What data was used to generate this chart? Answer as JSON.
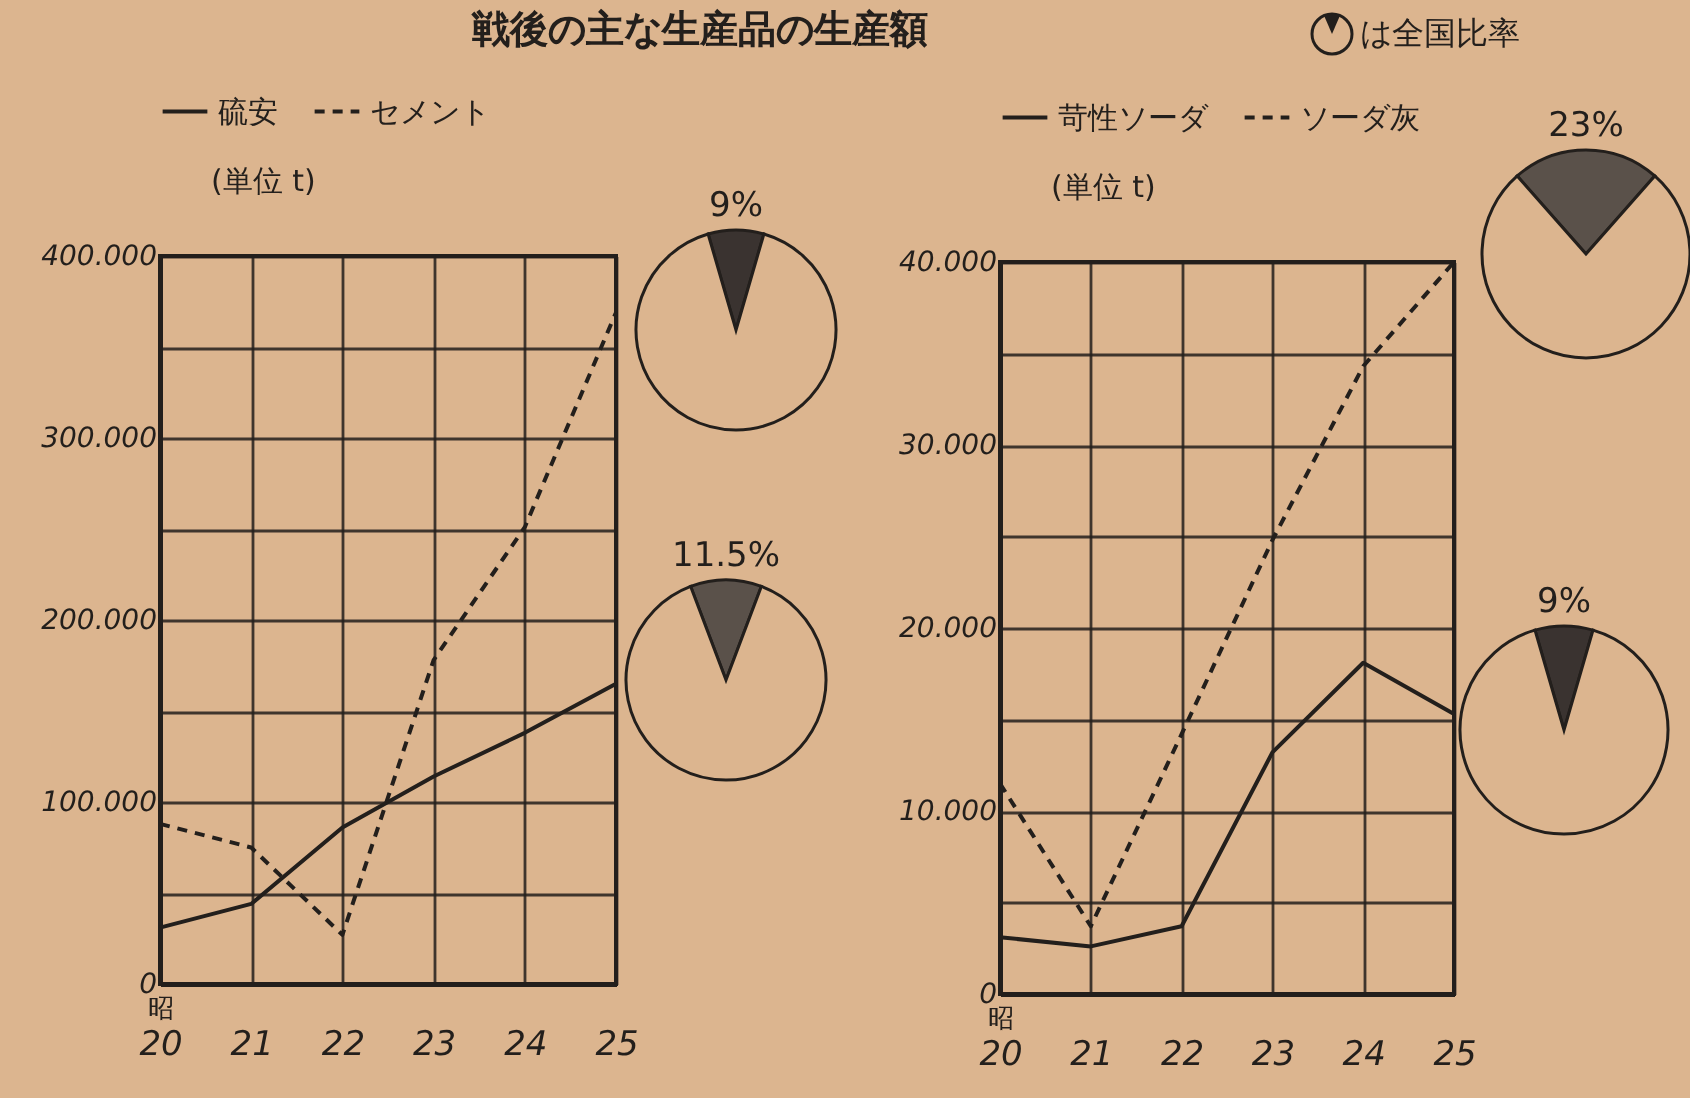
{
  "chart_data": [
    {
      "type": "line",
      "title": "戦後の主な生産品の生産額",
      "annotations": [
        "は全国比率"
      ],
      "ylabel": "(単位 t)",
      "xlabel": "昭",
      "categories": [
        "20",
        "21",
        "22",
        "23",
        "24",
        "25"
      ],
      "series": [
        {
          "name": "硫安",
          "color": "#231f1c",
          "line_style": "solid",
          "values": [
            31,
            44,
            86,
            114,
            138,
            165
          ]
        },
        {
          "name": "セメント",
          "color": "#231f1c",
          "line_style": "dashed",
          "values": [
            88,
            75,
            27,
            178,
            251,
            369
          ]
        }
      ],
      "ylim": [
        0,
        400
      ],
      "yticks": [
        0,
        {
          "value": 50,
          "label": null
        },
        {
          "value": 100,
          "label": "100.000"
        },
        {
          "value": 150,
          "label": null
        },
        {
          "value": 200,
          "label": "200.000"
        },
        {
          "value": 250,
          "label": null
        },
        {
          "value": 300,
          "label": "300.000"
        },
        {
          "value": 350,
          "label": null
        },
        {
          "value": 400,
          "label": "400.000"
        }
      ],
      "grid": true,
      "legend": "top left",
      "marker": "none"
    },
    {
      "type": "pie",
      "categories": [
        null,
        null
      ],
      "values": [
        9,
        91
      ],
      "colors": [
        "#3a3330",
        "#dcb58f"
      ],
      "value_labels": [
        "9%",
        null
      ]
    },
    {
      "type": "pie",
      "categories": [
        null,
        null
      ],
      "values": [
        11.5,
        88.5
      ],
      "colors": [
        "#5a514a",
        "#dcb58f"
      ],
      "value_labels": [
        "11.5%",
        null
      ]
    },
    {
      "type": "line",
      "ylabel": "(単位 t)",
      "xlabel": "昭",
      "categories": [
        "20",
        "21",
        "22",
        "23",
        "24",
        "25"
      ],
      "series": [
        {
          "name": "苛性ソーダ",
          "color": "#231f1c",
          "line_style": "solid",
          "values": [
            3.1,
            2.6,
            3.7,
            13.2,
            18.1,
            15.3
          ]
        },
        {
          "name": "ソーダ灰",
          "color": "#231f1c",
          "line_style": "dashed",
          "values": [
            11.5,
            3.7,
            14.2,
            24.8,
            34.3,
            40
          ]
        }
      ],
      "ylim": [
        0,
        40
      ],
      "yticks": [
        0,
        {
          "value": 5,
          "label": null
        },
        {
          "value": 10,
          "label": "10.000"
        },
        {
          "value": 15,
          "label": null
        },
        {
          "value": 20,
          "label": "20.000"
        },
        {
          "value": 25,
          "label": null
        },
        {
          "value": 30,
          "label": "30.000"
        },
        {
          "value": 35,
          "label": null
        },
        {
          "value": 40,
          "label": "40.000"
        }
      ],
      "grid": true,
      "legend": "top left",
      "marker": "none"
    },
    {
      "type": "pie",
      "categories": [
        null,
        null
      ],
      "values": [
        23,
        77
      ],
      "colors": [
        "#5a514a",
        "#dcb58f"
      ],
      "value_labels": [
        "23%",
        null
      ]
    },
    {
      "type": "pie",
      "categories": [
        null,
        null
      ],
      "values": [
        9,
        91
      ],
      "colors": [
        "#3a3330",
        "#dcb58f"
      ],
      "value_labels": [
        "9%",
        null
      ]
    }
  ]
}
